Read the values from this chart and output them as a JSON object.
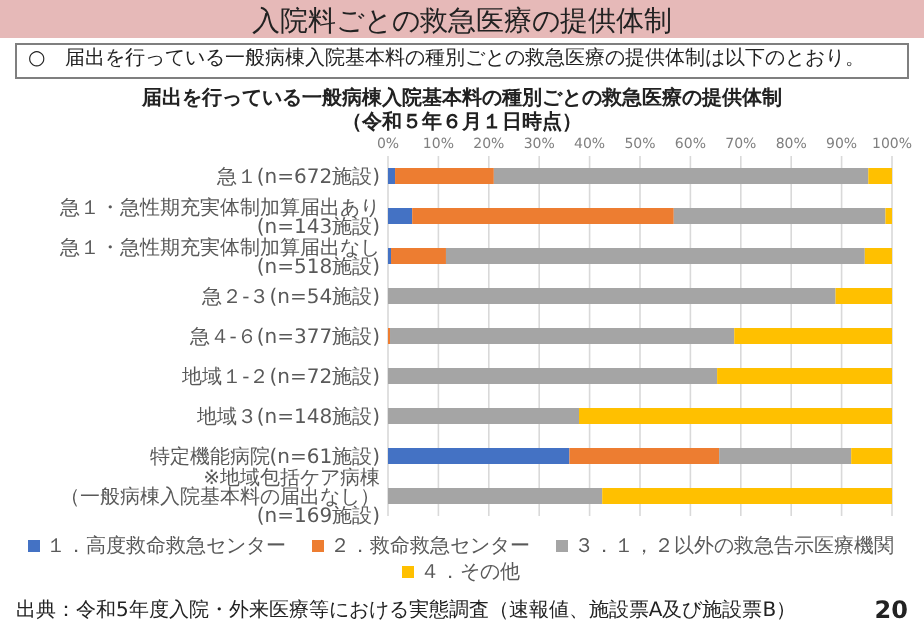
{
  "chart_data": {
    "type": "bar",
    "orientation": "horizontal",
    "stacked": true,
    "title": "届出を行っている一般病棟入院基本料の種別ごとの救急医療の提供体制",
    "subtitle": "（令和５年６月１日時点）",
    "categories": [
      "急１(n=672施設)",
      "急１・急性期充実体制加算届出あり(n=143施設)",
      "急１・急性期充実体制加算届出なし(n=518施設)",
      "急２-３(n=54施設)",
      "急４-６(n=377施設)",
      "地域１-２(n=72施設)",
      "地域３(n=148施設)",
      "特定機能病院(n=61施設)",
      "※地域包括ケア病棟（一般病棟入院基本料の届出なし）(n=169施設)"
    ],
    "series": [
      {
        "name": "１．高度救命救急センター",
        "color": "#4472c4",
        "values": [
          1.4,
          4.8,
          0.6,
          0,
          0,
          0,
          0,
          36.0,
          0
        ]
      },
      {
        "name": "２．救命救急センター",
        "color": "#ed7d31",
        "values": [
          19.6,
          51.9,
          10.9,
          0,
          0.4,
          0,
          0,
          29.7,
          0
        ]
      },
      {
        "name": "３．１，２以外の救急告示医療機関",
        "color": "#a5a5a5",
        "values": [
          74.3,
          42.0,
          83.1,
          88.8,
          68.3,
          65.3,
          37.9,
          26.2,
          42.5
        ]
      },
      {
        "name": "４．その他",
        "color": "#ffc000",
        "values": [
          4.7,
          1.3,
          5.4,
          11.2,
          31.3,
          34.7,
          62.1,
          8.1,
          57.5
        ]
      }
    ],
    "xlim": [
      0,
      100
    ],
    "xticks": [
      {
        "value": 0,
        "label": "0%"
      },
      {
        "value": 10,
        "label": "10%"
      },
      {
        "value": 20,
        "label": "20%"
      },
      {
        "value": 30,
        "label": "30%"
      },
      {
        "value": 40,
        "label": "40%"
      },
      {
        "value": 50,
        "label": "50%"
      },
      {
        "value": 60,
        "label": "60%"
      },
      {
        "value": 70,
        "label": "70%"
      },
      {
        "value": 80,
        "label": "80%"
      },
      {
        "value": 90,
        "label": "90%"
      },
      {
        "value": 100,
        "label": "100%"
      }
    ],
    "grid": "x",
    "legend": "bottom",
    "annotations": [
      "入院料ごとの救急医療の提供体制",
      "○　届出を行っている一般病棟入院基本料の種別ごとの救急医療の提供体制は以下のとおり。",
      "出典：令和5年度入院・外来医療等における実態調査（速報値、施設票A及び施設票B）",
      "20"
    ]
  }
}
